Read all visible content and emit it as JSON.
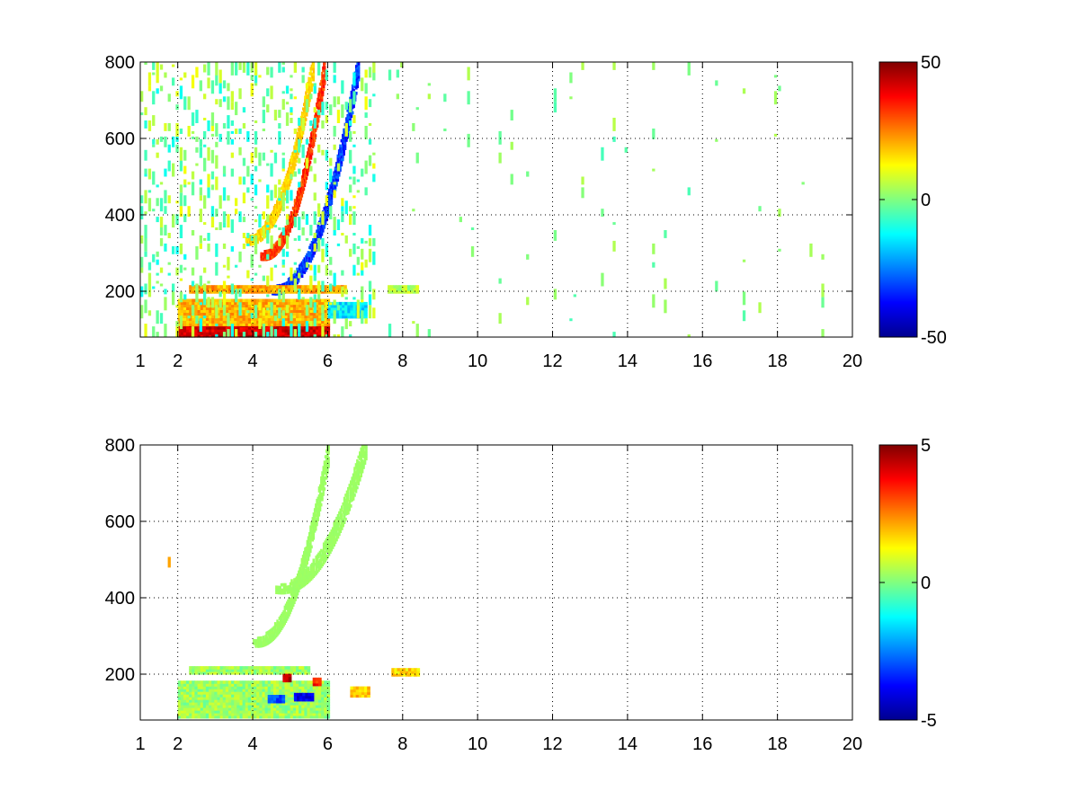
{
  "colormap": [
    "#00008f",
    "#0000ff",
    "#0080ff",
    "#00ffff",
    "#80ff80",
    "#ffff00",
    "#ff8000",
    "#ff0000",
    "#800000"
  ],
  "grid": true,
  "chart_data": [
    {
      "type": "heatmap",
      "title": "",
      "xlabel": "",
      "ylabel": "",
      "xlim": [
        1,
        20
      ],
      "ylim": [
        80,
        800
      ],
      "x_ticks": [
        "1",
        "2",
        "4",
        "6",
        "8",
        "10",
        "12",
        "14",
        "16",
        "18",
        "20"
      ],
      "y_ticks": [
        "200",
        "400",
        "600",
        "800"
      ],
      "colorbar": {
        "clim": [
          -50,
          50
        ],
        "tick_labels": [
          "50",
          "0",
          "-50"
        ]
      },
      "features": [
        {
          "kind": "band",
          "x_start": 4.2,
          "x_end": 5.9,
          "y_start": 290,
          "y_end": 780,
          "value": 35
        },
        {
          "kind": "band",
          "x_start": 4.5,
          "x_end": 6.8,
          "y_start": 200,
          "y_end": 790,
          "value": -35
        },
        {
          "kind": "band",
          "x_start": 3.8,
          "x_end": 5.6,
          "y_start": 330,
          "y_end": 790,
          "value": 18
        },
        {
          "kind": "block",
          "x_start": 2.0,
          "x_end": 6.0,
          "y_start": 80,
          "y_end": 110,
          "value": 42
        },
        {
          "kind": "block",
          "x_start": 2.0,
          "x_end": 6.0,
          "y_start": 110,
          "y_end": 180,
          "value": 20
        },
        {
          "kind": "block",
          "x_start": 2.3,
          "x_end": 6.5,
          "y_start": 195,
          "y_end": 215,
          "value": 22
        },
        {
          "kind": "block",
          "x_start": 6.0,
          "x_end": 7.0,
          "y_start": 130,
          "y_end": 170,
          "value": -15
        },
        {
          "kind": "block",
          "x_start": 7.6,
          "x_end": 8.4,
          "y_start": 195,
          "y_end": 215,
          "value": 5
        },
        {
          "kind": "noise",
          "x_start": 1.0,
          "x_end": 7.2,
          "y_start": 80,
          "y_end": 800,
          "amplitude": 12,
          "density": 0.55
        },
        {
          "kind": "noise",
          "x_start": 7.2,
          "x_end": 20.0,
          "y_start": 80,
          "y_end": 800,
          "amplitude": 6,
          "density": 0.12
        }
      ]
    },
    {
      "type": "heatmap",
      "title": "",
      "xlabel": "",
      "ylabel": "",
      "xlim": [
        1,
        20
      ],
      "ylim": [
        80,
        800
      ],
      "x_ticks": [
        "1",
        "2",
        "4",
        "6",
        "8",
        "10",
        "12",
        "14",
        "16",
        "18",
        "20"
      ],
      "y_ticks": [
        "200",
        "400",
        "600",
        "800"
      ],
      "colorbar": {
        "clim": [
          -5,
          5
        ],
        "tick_labels": [
          "5",
          "0",
          "-5"
        ]
      },
      "features": [
        {
          "kind": "band",
          "x_start": 4.0,
          "x_end": 6.0,
          "y_start": 280,
          "y_end": 780,
          "value": 0.3
        },
        {
          "kind": "band",
          "x_start": 4.6,
          "x_end": 7.0,
          "y_start": 420,
          "y_end": 800,
          "value": 0.3
        },
        {
          "kind": "block",
          "x_start": 2.0,
          "x_end": 6.0,
          "y_start": 85,
          "y_end": 180,
          "value": 0.3
        },
        {
          "kind": "block",
          "x_start": 2.3,
          "x_end": 5.5,
          "y_start": 200,
          "y_end": 215,
          "value": 0.3
        },
        {
          "kind": "block",
          "x_start": 4.8,
          "x_end": 5.0,
          "y_start": 180,
          "y_end": 200,
          "value": 4.5
        },
        {
          "kind": "block",
          "x_start": 5.1,
          "x_end": 5.6,
          "y_start": 130,
          "y_end": 150,
          "value": -4.0
        },
        {
          "kind": "block",
          "x_start": 4.4,
          "x_end": 4.8,
          "y_start": 125,
          "y_end": 145,
          "value": -3.0
        },
        {
          "kind": "block",
          "x_start": 5.6,
          "x_end": 5.8,
          "y_start": 170,
          "y_end": 190,
          "value": 3.5
        },
        {
          "kind": "block",
          "x_start": 6.6,
          "x_end": 7.1,
          "y_start": 140,
          "y_end": 165,
          "value": 1.8
        },
        {
          "kind": "block",
          "x_start": 7.7,
          "x_end": 8.4,
          "y_start": 195,
          "y_end": 212,
          "value": 1.6
        },
        {
          "kind": "noise",
          "x_start": 1.0,
          "x_end": 7.0,
          "y_start": 80,
          "y_end": 800,
          "amplitude": 2.5,
          "density": 0.02
        }
      ]
    }
  ]
}
